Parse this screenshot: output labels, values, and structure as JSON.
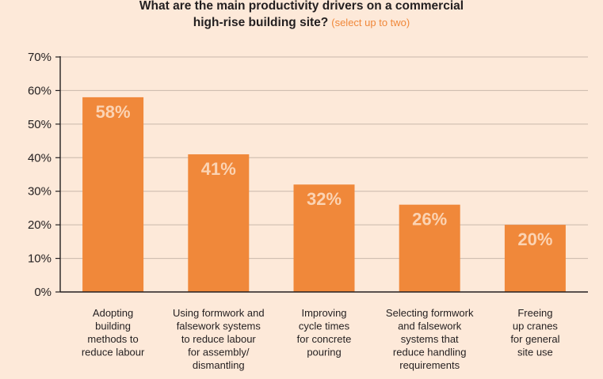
{
  "title_line_1": "What are the main productivity drivers on a commercial",
  "title_line_2": "high-rise building site?",
  "title_note": "(select up to two)",
  "colors": {
    "background": "#fde9d9",
    "bar": "#f0883a",
    "bar_label": "#fbd3b3",
    "note": "#f0883a",
    "grid": "#c9b8aa",
    "axis": "#231f20"
  },
  "chart_data": {
    "type": "bar",
    "categories": [
      [
        "Adopting",
        "building",
        "methods to",
        "reduce labour"
      ],
      [
        "Using formwork and",
        "falsework systems",
        "to reduce labour",
        "for assembly/",
        "dismantling"
      ],
      [
        "Improving",
        "cycle times",
        "for concrete",
        "pouring"
      ],
      [
        "Selecting formwork",
        "and falsework",
        "systems that",
        "reduce handling",
        "requirements"
      ],
      [
        "Freeing",
        "up cranes",
        "for general",
        "site use"
      ]
    ],
    "values": [
      58,
      41,
      32,
      26,
      20
    ],
    "value_labels": [
      "58%",
      "41%",
      "32%",
      "26%",
      "20%"
    ],
    "title": "What are the main productivity drivers on a commercial high-rise building site? (select up to two)",
    "xlabel": "",
    "ylabel": "",
    "ylim": [
      0,
      70
    ],
    "yticks": [
      0,
      10,
      20,
      30,
      40,
      50,
      60,
      70
    ],
    "ytick_labels": [
      "0%",
      "10%",
      "20%",
      "30%",
      "40%",
      "50%",
      "60%",
      "70%"
    ],
    "grid": true,
    "legend": "none"
  }
}
